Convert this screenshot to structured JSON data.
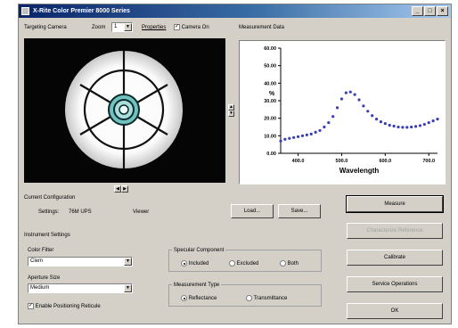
{
  "window": {
    "title": "X-Rite Color Premier 8000 Series",
    "controls": {
      "minimize": "_",
      "maximize": "□",
      "close": "×"
    }
  },
  "camera": {
    "group_label": "Targeting Camera",
    "zoom_label": "Zoom",
    "zoom_value": "1",
    "properties_label": "Properties",
    "camera_on_label": "Camera On",
    "camera_on_checked": true
  },
  "measurement": {
    "label": "Measurement Data"
  },
  "current_config": {
    "label": "Current Configuration",
    "settings_label": "Settings:",
    "settings_value": "76M UPS",
    "name_value": "Viewer",
    "load_label": "Load...",
    "save_label": "Save..."
  },
  "instrument": {
    "label": "Instrument Settings",
    "color_filter_label": "Color Filter",
    "color_filter_value": "Clem",
    "aperture_label": "Aperture Size",
    "aperture_value": "Medium",
    "enable_label": "Enable Positioning Reticule",
    "enable_checked": true
  },
  "specular": {
    "label": "Specular Component",
    "options": [
      "Included",
      "Excluded",
      "Both"
    ],
    "selected": 0
  },
  "mtype": {
    "label": "Measurement Type",
    "options": [
      "Reflectance",
      "Transmittance"
    ],
    "selected": 0
  },
  "buttons": {
    "measure": "Measure",
    "disabled": "Characterize Reference",
    "calibrate": "Calibrate",
    "service": "Service Operations",
    "ok": "OK"
  },
  "chart_data": {
    "type": "scatter",
    "xlabel": "Wavelength",
    "ylabel": "%",
    "x_ticks": [
      "400.0",
      "500.0",
      "600.0",
      "700.0"
    ],
    "y_ticks": [
      "60.00",
      "50.00",
      "40.00",
      "30.00",
      "20.00",
      "10.00",
      "0.00"
    ],
    "xlim": [
      360,
      720
    ],
    "ylim": [
      0,
      60
    ],
    "x": [
      360,
      370,
      380,
      390,
      400,
      410,
      420,
      430,
      440,
      450,
      460,
      470,
      480,
      490,
      500,
      510,
      520,
      530,
      540,
      550,
      560,
      570,
      580,
      590,
      600,
      610,
      620,
      630,
      640,
      650,
      660,
      670,
      680,
      690,
      700,
      710,
      720
    ],
    "y": [
      7,
      8,
      8.5,
      9,
      9.5,
      10,
      10.5,
      11,
      12,
      13,
      15,
      17.5,
      21,
      26,
      31,
      34.5,
      35,
      33.5,
      30.5,
      27,
      24,
      21.5,
      19.5,
      18,
      17,
      16,
      15.5,
      15,
      14.8,
      14.8,
      15,
      15.3,
      15.8,
      16.5,
      17.5,
      18.5,
      19.5
    ],
    "marker_color": "#3b3fb6"
  }
}
